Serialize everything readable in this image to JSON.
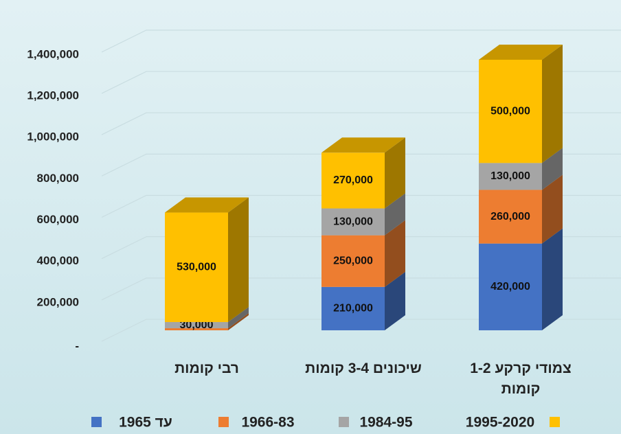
{
  "chart_data": {
    "type": "bar3d_stacked",
    "categories": [
      "רבי קומות",
      "שיכונים 3-4 קומות",
      "צמודי קרקע 1-2 קומות"
    ],
    "series": [
      {
        "name": "עד 1965",
        "color": "#4472c4",
        "values": [
          0,
          210000,
          420000
        ],
        "value_labels": [
          null,
          "210,000",
          "420,000"
        ]
      },
      {
        "name": "1966-83",
        "color": "#ed7d31",
        "values": [
          10000,
          250000,
          260000
        ],
        "value_labels": [
          null,
          "250,000",
          "260,000"
        ]
      },
      {
        "name": "1984-95",
        "color": "#a5a5a5",
        "values": [
          30000,
          130000,
          130000
        ],
        "value_labels": [
          "30,000",
          "130,000",
          "130,000"
        ]
      },
      {
        "name": "1995-2020",
        "color": "#ffc000",
        "values": [
          530000,
          270000,
          500000
        ],
        "value_labels": [
          "530,000",
          "270,000",
          "500,000"
        ]
      }
    ],
    "ylim": [
      0,
      1400000
    ],
    "yticks": [
      {
        "value": 0,
        "label": "-"
      },
      {
        "value": 200000,
        "label": "200,000"
      },
      {
        "value": 400000,
        "label": "400,000"
      },
      {
        "value": 600000,
        "label": "600,000"
      },
      {
        "value": 800000,
        "label": "800,000"
      },
      {
        "value": 1000000,
        "label": "1,000,000"
      },
      {
        "value": 1200000,
        "label": "1,200,000"
      },
      {
        "value": 1400000,
        "label": "1,400,000"
      }
    ],
    "grid": true,
    "legend": "bottom"
  }
}
